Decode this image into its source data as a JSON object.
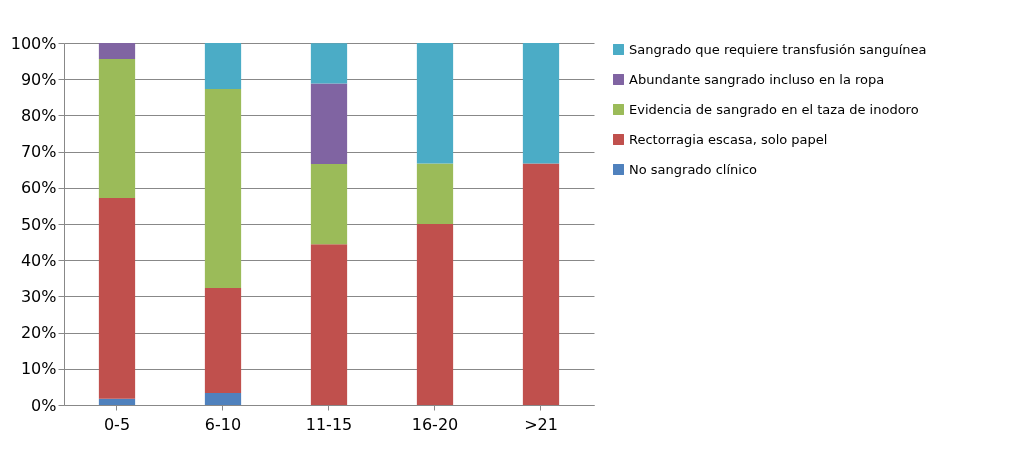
{
  "chart_data": {
    "type": "bar",
    "stacked": true,
    "categories": [
      "0-5",
      "6-10",
      "11-15",
      "16-20",
      ">21"
    ],
    "series": [
      {
        "name": "No sangrado clínico",
        "color": "#4f81bd",
        "values": [
          1.7,
          3.3,
          0,
          0,
          0
        ]
      },
      {
        "name": "Rectorragia escasa, solo papel",
        "color": "#c0504d",
        "values": [
          55.5,
          29,
          44.4,
          50,
          66.7
        ]
      },
      {
        "name": "Evidencia de sangrado en el taza de inodoro",
        "color": "#9bbb59",
        "values": [
          38.4,
          55,
          22.2,
          16.7,
          0
        ]
      },
      {
        "name": "Abundante sangrado incluso en la ropa",
        "color": "#8064a2",
        "values": [
          4.4,
          0,
          22.2,
          0,
          0
        ]
      },
      {
        "name": "Sangrado que requiere transfusión sanguínea",
        "color": "#4bacc6",
        "values": [
          0,
          12.7,
          11.1,
          33.3,
          33.3
        ]
      }
    ],
    "ylim": [
      0,
      100
    ],
    "yticks": [
      {
        "value": 0,
        "label": "0%"
      },
      {
        "value": 10,
        "label": "10%"
      },
      {
        "value": 20,
        "label": "20%"
      },
      {
        "value": 30,
        "label": "30%"
      },
      {
        "value": 40,
        "label": "40%"
      },
      {
        "value": 50,
        "label": "50%"
      },
      {
        "value": 60,
        "label": "60%"
      },
      {
        "value": 70,
        "label": "70%"
      },
      {
        "value": 80,
        "label": "80%"
      },
      {
        "value": 90,
        "label": "90%"
      },
      {
        "value": 100,
        "label": "100%"
      }
    ],
    "grid": "y",
    "legend": "right"
  }
}
